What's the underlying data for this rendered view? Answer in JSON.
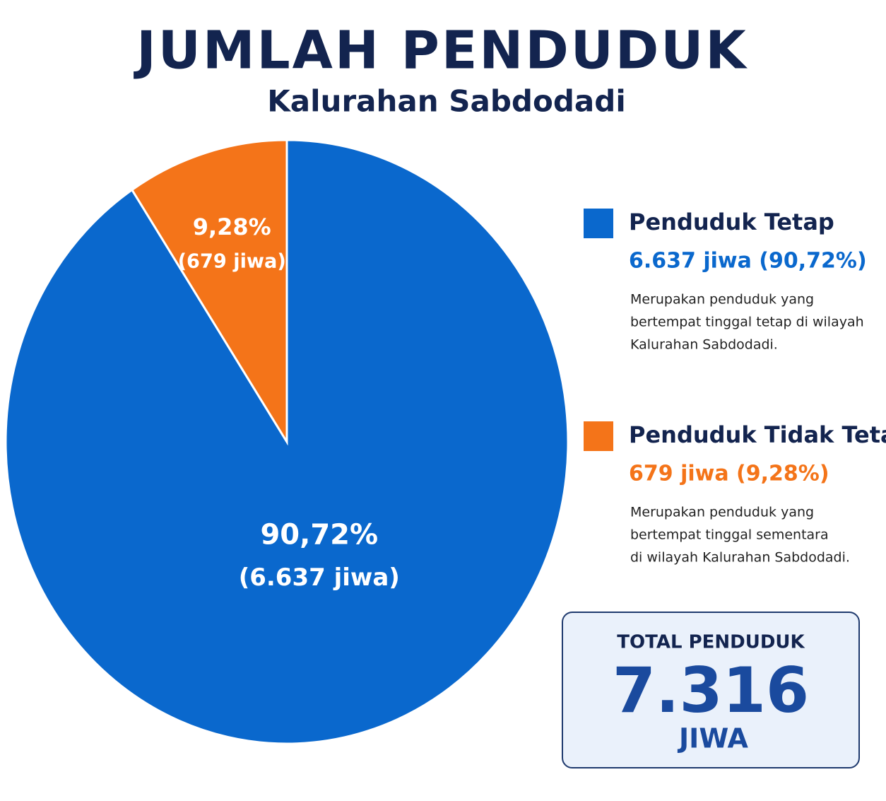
{
  "chart_data": {
    "type": "pie",
    "title": "JUMLAH PENDUDUK",
    "subtitle": "Kalurahan Sabdodadi",
    "categories": [
      "Penduduk Tetap",
      "Penduduk Tidak Tetap"
    ],
    "values": [
      90.72,
      9.28
    ],
    "value_labels": [
      "90,72%",
      "9,28%"
    ],
    "colors": [
      "#0a68cd",
      "#f47419"
    ],
    "counts": [
      6637,
      679
    ],
    "count_labels": [
      "(6.637 jiwa)",
      "(679 jiwa)"
    ],
    "legend_values": [
      "6.637 jiwa (90,72%)",
      "679 jiwa (9,28%)"
    ],
    "descriptions": [
      [
        "Merupakan penduduk yang",
        "bertempat tinggal tetap di wilayah",
        "Kalurahan Sabdodadi."
      ],
      [
        "Merupakan penduduk yang",
        "bertempat tinggal sementara",
        "di wilayah Kalurahan Sabdodadi."
      ]
    ],
    "total": {
      "label": "TOTAL PENDUDUK",
      "value": 7316,
      "value_label": "7.316",
      "unit": "JIWA"
    }
  }
}
